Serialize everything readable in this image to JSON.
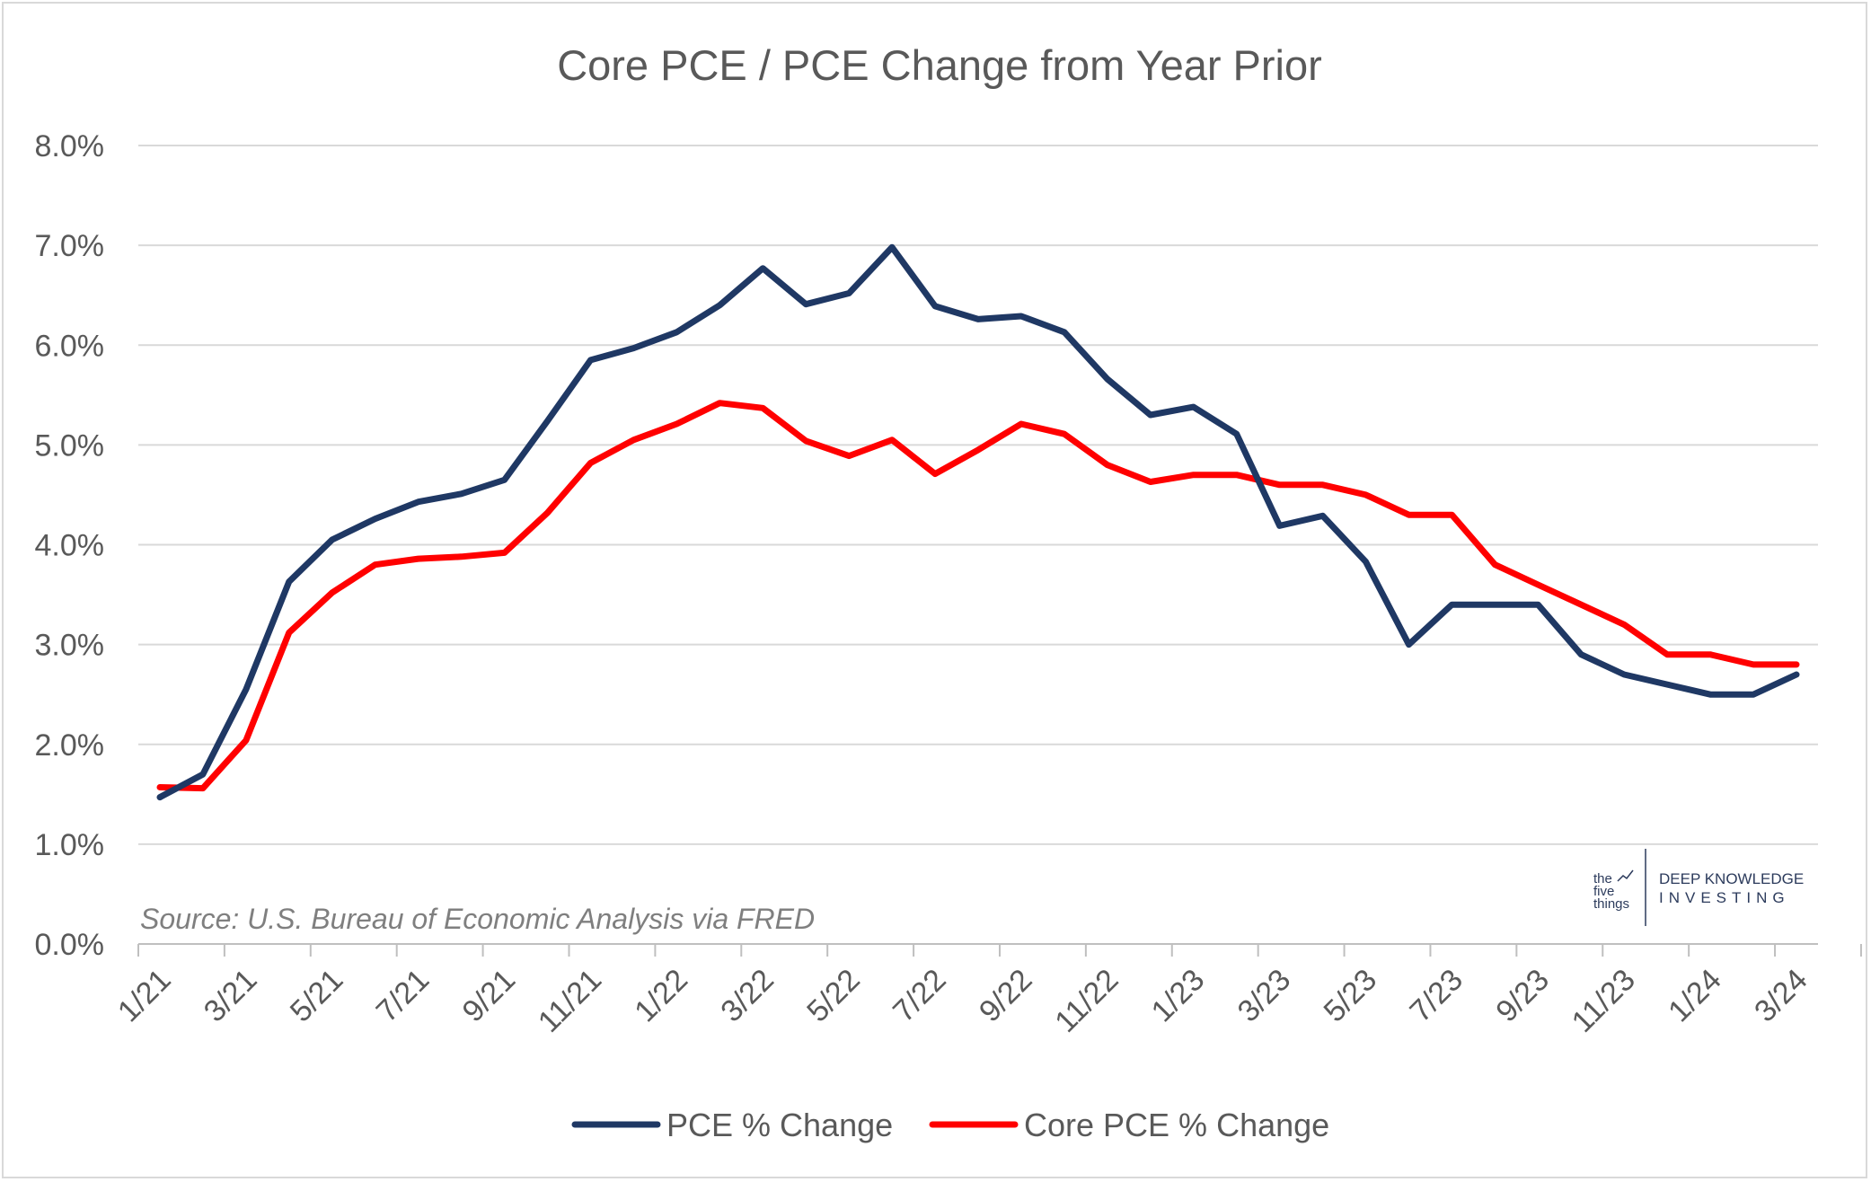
{
  "chart_data": {
    "type": "line",
    "title": "Core PCE / PCE Change from Year Prior",
    "xlabel": "",
    "ylabel": "",
    "ylim": [
      0,
      8
    ],
    "y_ticks": [
      "0.0%",
      "1.0%",
      "2.0%",
      "3.0%",
      "4.0%",
      "5.0%",
      "6.0%",
      "7.0%",
      "8.0%"
    ],
    "x_tick_labels": [
      "1/21",
      "3/21",
      "5/21",
      "7/21",
      "9/21",
      "11/21",
      "1/22",
      "3/22",
      "5/22",
      "7/22",
      "9/22",
      "11/22",
      "1/23",
      "3/23",
      "5/23",
      "7/23",
      "9/23",
      "11/23",
      "1/24",
      "3/24"
    ],
    "categories": [
      "1/21",
      "2/21",
      "3/21",
      "4/21",
      "5/21",
      "6/21",
      "7/21",
      "8/21",
      "9/21",
      "10/21",
      "11/21",
      "12/21",
      "1/22",
      "2/22",
      "3/22",
      "4/22",
      "5/22",
      "6/22",
      "7/22",
      "8/22",
      "9/22",
      "10/22",
      "11/22",
      "12/22",
      "1/23",
      "2/23",
      "3/23",
      "4/23",
      "5/23",
      "6/23",
      "7/23",
      "8/23",
      "9/23",
      "10/23",
      "11/23",
      "12/23",
      "1/24",
      "2/24",
      "3/24"
    ],
    "series": [
      {
        "name": "PCE % Change",
        "color": "#1f3864",
        "values": [
          1.47,
          1.7,
          2.55,
          3.63,
          4.05,
          4.26,
          4.43,
          4.51,
          4.65,
          5.24,
          5.85,
          5.97,
          6.13,
          6.4,
          6.77,
          6.41,
          6.52,
          6.98,
          6.39,
          6.26,
          6.29,
          6.13,
          5.66,
          5.3,
          5.38,
          5.11,
          4.19,
          4.29,
          3.83,
          3.0,
          3.4,
          3.4,
          3.4,
          2.9,
          2.7,
          2.6,
          2.5,
          2.5,
          2.7
        ]
      },
      {
        "name": "Core PCE % Change",
        "color": "#ff0000",
        "values": [
          1.57,
          1.56,
          2.04,
          3.12,
          3.52,
          3.8,
          3.86,
          3.88,
          3.92,
          4.32,
          4.82,
          5.05,
          5.21,
          5.42,
          5.37,
          5.04,
          4.89,
          5.05,
          4.71,
          4.95,
          5.21,
          5.11,
          4.8,
          4.63,
          4.7,
          4.7,
          4.6,
          4.6,
          4.5,
          4.3,
          4.3,
          3.8,
          3.6,
          3.4,
          3.2,
          2.9,
          2.9,
          2.8,
          2.8
        ]
      }
    ],
    "annotation": "Source: U.S. Bureau of Economic Analysis via FRED",
    "legend_position": "bottom"
  },
  "logo": {
    "line1": "the",
    "line2": "five",
    "line3": "things",
    "brand_line1": "DEEP KNOWLEDGE",
    "brand_line2": "INVESTING"
  }
}
